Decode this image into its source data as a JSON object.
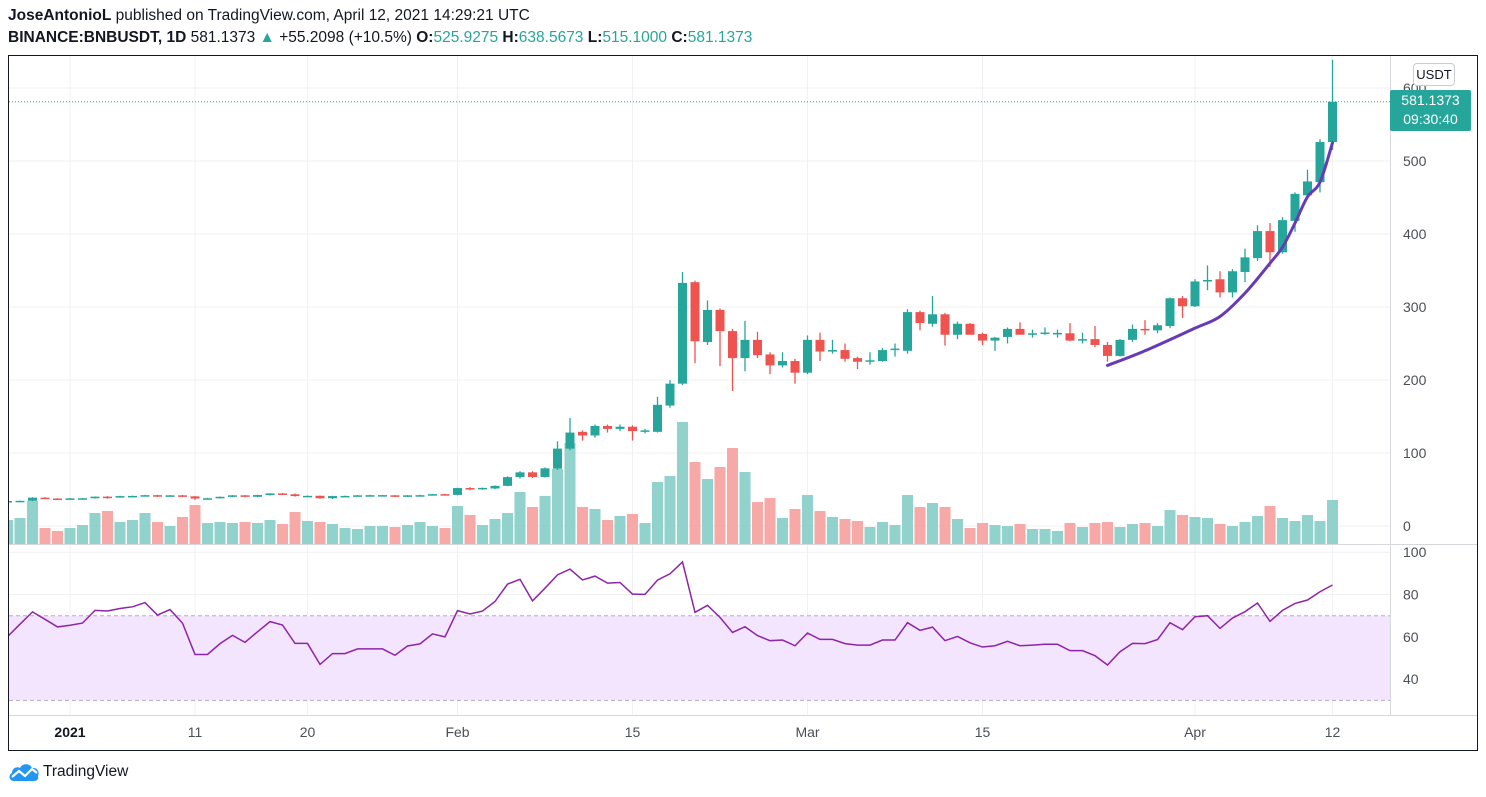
{
  "header": {
    "author": "JoseAntonioL",
    "published": "published on TradingView.com, April 12, 2021 14:29:21 UTC",
    "symbol": "BINANCE:BNBUSDT, 1D",
    "last": "581.1373",
    "change": "+55.2098 (+10.5%)",
    "o_label": "O:",
    "o": "525.9275",
    "h_label": "H:",
    "h": "638.5673",
    "l_label": "L:",
    "l": "515.1000",
    "c_label": "C:",
    "c": "581.1373",
    "direction_icon": "triangle-up-icon"
  },
  "price_axis": {
    "currency": "USDT",
    "last_price": "581.1373",
    "countdown": "09:30:40"
  },
  "footer": {
    "brand": "TradingView",
    "logo_icon": "tradingview-cloud-icon"
  },
  "colors": {
    "up": "#26a69a",
    "down": "#ef5350",
    "rsi": "#8e24aa",
    "rsi_band": "#f3e5fd",
    "drawing": "#673ab7"
  },
  "chart_data": {
    "type": "candlestick",
    "title": "",
    "grid": true,
    "ylim": [
      -20,
      640
    ],
    "price_ticks": [
      "0",
      "100",
      "200",
      "300",
      "400",
      "500",
      "600"
    ],
    "time_ticks": [
      {
        "label": "2021",
        "date": "2021-01-01",
        "bold": true
      },
      {
        "label": "11",
        "date": "2021-01-11"
      },
      {
        "label": "20",
        "date": "2021-01-20"
      },
      {
        "label": "Feb",
        "date": "2021-02-01"
      },
      {
        "label": "15",
        "date": "2021-02-15"
      },
      {
        "label": "Mar",
        "date": "2021-03-01"
      },
      {
        "label": "15",
        "date": "2021-03-15"
      },
      {
        "label": "Apr",
        "date": "2021-04-01"
      },
      {
        "label": "12",
        "date": "2021-04-12"
      }
    ],
    "columns": [
      "date",
      "open",
      "high",
      "low",
      "close"
    ],
    "candles": [
      [
        "2020-12-27",
        34,
        35,
        33,
        34.2
      ],
      [
        "2020-12-28",
        33.4,
        34.8,
        32.8,
        34.5
      ],
      [
        "2020-12-29",
        34.5,
        39.5,
        34,
        38.8
      ],
      [
        "2020-12-30",
        38.8,
        39.5,
        37,
        37.6
      ],
      [
        "2020-12-31",
        37.6,
        38,
        36.6,
        37
      ],
      [
        "2021-01-01",
        37,
        38.3,
        36.7,
        37.8
      ],
      [
        "2021-01-02",
        37.8,
        38.4,
        37.2,
        38
      ],
      [
        "2021-01-03",
        38,
        40.5,
        37.6,
        40.2
      ],
      [
        "2021-01-04",
        40.2,
        41,
        37.5,
        39.6
      ],
      [
        "2021-01-05",
        39.6,
        41.4,
        38.8,
        41
      ],
      [
        "2021-01-06",
        41,
        41.6,
        40.2,
        41.2
      ],
      [
        "2021-01-07",
        41.2,
        42.6,
        40.7,
        42.2
      ],
      [
        "2021-01-08",
        42.2,
        42.6,
        39.8,
        40.8
      ],
      [
        "2021-01-09",
        40.8,
        42.4,
        40.3,
        42
      ],
      [
        "2021-01-10",
        42,
        42.5,
        39.6,
        40.6
      ],
      [
        "2021-01-11",
        40.6,
        41,
        35.8,
        37.6
      ],
      [
        "2021-01-12",
        37.6,
        38.6,
        37,
        38
      ],
      [
        "2021-01-13",
        38,
        40.4,
        37.6,
        40
      ],
      [
        "2021-01-14",
        40,
        42.4,
        39.6,
        42
      ],
      [
        "2021-01-15",
        42,
        42.4,
        39.4,
        40
      ],
      [
        "2021-01-16",
        40,
        42.8,
        39.6,
        42.4
      ],
      [
        "2021-01-17",
        42.4,
        45,
        41.8,
        44.6
      ],
      [
        "2021-01-18",
        44.6,
        45.2,
        42.6,
        43.2
      ],
      [
        "2021-01-19",
        43.4,
        44.6,
        40.2,
        41
      ],
      [
        "2021-01-20",
        41,
        41.8,
        40,
        41.3
      ],
      [
        "2021-01-21",
        41.4,
        41.8,
        37.2,
        38
      ],
      [
        "2021-01-22",
        38,
        41.4,
        37,
        41
      ],
      [
        "2021-01-23",
        41,
        41.6,
        40.4,
        41.2
      ],
      [
        "2021-01-24",
        41.2,
        42.5,
        40.8,
        42
      ],
      [
        "2021-01-25",
        42,
        42.8,
        41,
        42.2
      ],
      [
        "2021-01-26",
        42.2,
        42.6,
        40.8,
        42.3
      ],
      [
        "2021-01-27",
        42,
        42.4,
        39.6,
        40.2
      ],
      [
        "2021-01-28",
        40.2,
        42.4,
        39.8,
        42
      ],
      [
        "2021-01-29",
        42,
        42.8,
        41.2,
        42.2
      ],
      [
        "2021-01-30",
        42.2,
        44,
        41.8,
        43.6
      ],
      [
        "2021-01-31",
        43.6,
        44,
        42.2,
        42.6
      ],
      [
        "2021-02-01",
        42.6,
        52.4,
        42.2,
        52
      ],
      [
        "2021-02-02",
        52,
        53.2,
        48.8,
        50.2
      ],
      [
        "2021-02-03",
        50.2,
        52.6,
        49.6,
        52.2
      ],
      [
        "2021-02-04",
        51.4,
        55.6,
        50.6,
        55
      ],
      [
        "2021-02-05",
        55,
        68,
        54.6,
        67
      ],
      [
        "2021-02-06",
        67,
        75,
        65,
        73.5
      ],
      [
        "2021-02-07",
        73.5,
        75,
        65.8,
        67.2
      ],
      [
        "2021-02-08",
        67.2,
        80.2,
        66.4,
        79
      ],
      [
        "2021-02-09",
        78.5,
        116,
        77,
        106
      ],
      [
        "2021-02-10",
        106,
        148,
        104,
        128
      ],
      [
        "2021-02-11",
        129,
        131,
        117,
        124
      ],
      [
        "2021-02-12",
        124,
        139,
        121,
        137
      ],
      [
        "2021-02-13",
        137,
        139,
        128,
        133
      ],
      [
        "2021-02-14",
        133,
        139,
        130,
        136
      ],
      [
        "2021-02-15",
        136,
        138,
        117,
        130
      ],
      [
        "2021-02-16",
        130,
        133,
        127,
        131
      ],
      [
        "2021-02-17",
        129,
        177,
        128,
        166
      ],
      [
        "2021-02-18",
        165,
        200,
        162,
        195
      ],
      [
        "2021-02-19",
        195,
        348,
        193,
        333
      ],
      [
        "2021-02-20",
        334,
        336,
        223,
        253
      ],
      [
        "2021-02-21",
        252,
        309,
        248,
        296
      ],
      [
        "2021-02-22",
        296,
        298,
        219,
        267
      ],
      [
        "2021-02-23",
        267,
        270,
        185,
        230
      ],
      [
        "2021-02-24",
        230,
        281,
        212,
        255
      ],
      [
        "2021-02-25",
        255,
        266,
        230,
        234
      ],
      [
        "2021-02-26",
        235,
        238,
        208,
        220
      ],
      [
        "2021-02-27",
        220,
        238,
        217,
        226
      ],
      [
        "2021-02-28",
        226,
        229,
        195,
        210
      ],
      [
        "2021-03-01",
        210,
        261,
        208,
        255
      ],
      [
        "2021-03-02",
        255,
        265,
        226,
        239
      ],
      [
        "2021-03-03",
        239,
        255,
        236,
        241
      ],
      [
        "2021-03-04",
        241,
        250,
        225,
        229
      ],
      [
        "2021-03-05",
        230,
        232,
        215,
        225
      ],
      [
        "2021-03-06",
        225,
        238,
        221,
        227
      ],
      [
        "2021-03-07",
        226,
        244,
        225,
        241
      ],
      [
        "2021-03-08",
        241,
        250,
        232,
        243
      ],
      [
        "2021-03-09",
        240,
        297,
        236,
        293
      ],
      [
        "2021-03-10",
        293,
        295,
        268,
        278
      ],
      [
        "2021-03-11",
        277,
        315,
        273,
        290
      ],
      [
        "2021-03-12",
        290,
        292,
        247,
        262
      ],
      [
        "2021-03-13",
        262,
        280,
        256,
        277
      ],
      [
        "2021-03-14",
        277,
        278,
        262,
        262
      ],
      [
        "2021-03-15",
        263,
        265,
        248,
        254
      ],
      [
        "2021-03-16",
        254,
        259,
        240,
        258
      ],
      [
        "2021-03-17",
        259,
        272,
        250,
        270
      ],
      [
        "2021-03-18",
        270,
        279,
        263,
        262
      ],
      [
        "2021-03-19",
        263,
        269,
        258,
        264
      ],
      [
        "2021-03-20",
        263,
        272,
        262,
        265
      ],
      [
        "2021-03-21",
        264,
        269,
        258,
        264.5
      ],
      [
        "2021-03-22",
        264,
        278,
        253,
        254
      ],
      [
        "2021-03-23",
        255,
        265,
        250,
        256
      ],
      [
        "2021-03-24",
        256,
        274,
        245,
        248
      ],
      [
        "2021-03-25",
        248,
        252,
        225,
        233
      ],
      [
        "2021-03-26",
        233,
        256,
        232,
        255
      ],
      [
        "2021-03-27",
        255,
        276,
        252,
        270
      ],
      [
        "2021-03-28",
        270,
        282,
        262,
        268
      ],
      [
        "2021-03-29",
        268,
        278,
        264,
        275
      ],
      [
        "2021-03-30",
        274,
        313,
        271,
        312
      ],
      [
        "2021-03-31",
        312,
        315,
        285,
        301
      ],
      [
        "2021-04-01",
        301,
        338,
        300,
        335
      ],
      [
        "2021-04-02",
        336,
        357,
        323,
        337
      ],
      [
        "2021-04-03",
        338,
        349,
        313,
        320
      ],
      [
        "2021-04-04",
        320,
        352,
        313,
        349
      ],
      [
        "2021-04-05",
        348,
        380,
        334,
        368
      ],
      [
        "2021-04-06",
        367,
        412,
        363,
        404
      ],
      [
        "2021-04-07",
        404,
        415,
        355,
        375
      ],
      [
        "2021-04-08",
        375,
        423,
        373,
        419
      ],
      [
        "2021-04-09",
        418,
        457,
        403,
        455
      ],
      [
        "2021-04-10",
        453,
        488,
        451,
        472
      ],
      [
        "2021-04-11",
        471,
        530,
        457,
        526
      ],
      [
        "2021-04-12",
        525.9275,
        638.5673,
        515.1,
        581.1373
      ]
    ],
    "volume_relative": [
      24,
      26,
      43,
      16,
      13,
      16,
      19,
      31,
      33,
      22,
      24,
      31,
      22,
      18,
      27,
      39,
      21,
      22,
      21,
      22,
      21,
      24,
      20,
      32,
      23,
      22,
      20,
      16,
      15,
      18,
      18,
      17,
      19,
      22,
      18,
      16,
      38,
      29,
      19,
      25,
      31,
      52,
      37,
      48,
      75,
      101,
      37,
      35,
      24,
      28,
      30,
      21,
      62,
      68,
      122,
      82,
      65,
      77,
      96,
      72,
      42,
      46,
      26,
      35,
      49,
      33,
      27,
      25,
      23,
      17,
      22,
      19,
      49,
      37,
      41,
      37,
      25,
      16,
      21,
      19,
      18,
      20,
      15,
      15,
      13,
      21,
      17,
      21,
      22,
      17,
      20,
      21,
      18,
      34,
      29,
      27,
      26,
      20,
      18,
      22,
      28,
      38,
      26,
      23,
      29,
      23,
      44
    ],
    "rsi": {
      "ticks": [
        "100",
        "80",
        "60",
        "40"
      ],
      "upper": 70,
      "lower": 30,
      "ylim": [
        26,
        103
      ],
      "values": [
        60.1,
        66.0,
        71.8,
        68.3,
        64.7,
        65.5,
        66.5,
        72.5,
        72.2,
        73.4,
        74.2,
        76.2,
        70.3,
        72.9,
        66.5,
        51.7,
        51.7,
        56.8,
        60.7,
        57.4,
        62.4,
        67.2,
        65.6,
        56.9,
        56.9,
        47.0,
        52.1,
        52.1,
        54.3,
        54.3,
        54.3,
        51.3,
        55.7,
        56.7,
        61.4,
        60.0,
        72.4,
        70.8,
        72.2,
        76.7,
        84.9,
        87.2,
        77.0,
        83.0,
        89.3,
        92.0,
        86.9,
        88.7,
        85.4,
        85.7,
        80.2,
        80.1,
        86.8,
        89.8,
        95.4,
        71.6,
        74.9,
        69.2,
        62.1,
        64.8,
        60.6,
        58.2,
        58.5,
        55.8,
        61.8,
        58.8,
        58.8,
        56.8,
        56.1,
        56.1,
        58.5,
        58.5,
        66.7,
        63.1,
        64.6,
        58.2,
        60.2,
        57.2,
        55.2,
        55.8,
        57.9,
        55.8,
        56.1,
        56.5,
        56.5,
        53.5,
        53.5,
        51.1,
        46.7,
        53.0,
        56.9,
        56.8,
        58.7,
        66.7,
        63.4,
        69.5,
        70.0,
        64.0,
        68.9,
        71.9,
        76.0,
        67.3,
        72.5,
        75.8,
        77.4,
        81.3,
        84.5
      ]
    },
    "drawing_curve": [
      [
        "2021-03-25",
        220
      ],
      [
        "2021-03-28",
        240
      ],
      [
        "2021-04-01",
        271
      ],
      [
        "2021-04-03",
        287
      ],
      [
        "2021-04-05",
        319
      ],
      [
        "2021-04-07",
        360
      ],
      [
        "2021-04-08",
        382
      ],
      [
        "2021-04-09",
        415
      ],
      [
        "2021-04-10",
        451
      ],
      [
        "2021-04-11",
        471
      ],
      [
        "2021-04-12",
        525
      ]
    ]
  }
}
